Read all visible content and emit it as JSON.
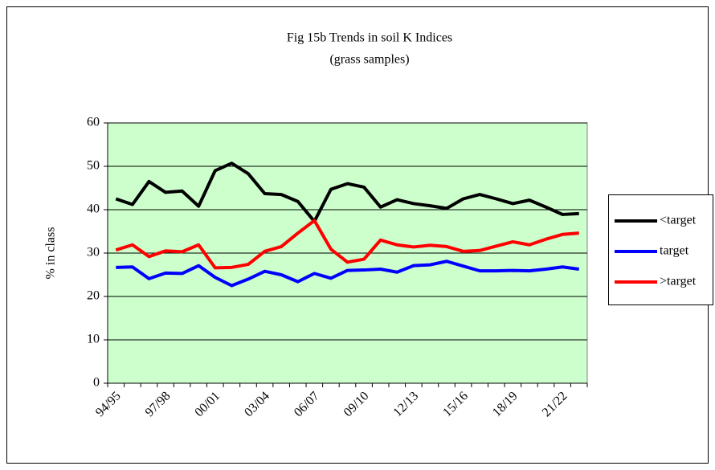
{
  "chart_data": {
    "type": "line",
    "title": "Fig 15b Trends in soil K Indices",
    "subtitle": "(grass samples)",
    "y_label": "% in class",
    "categories": [
      "94/95",
      null,
      null,
      "97/98",
      null,
      null,
      "00/01",
      null,
      null,
      "03/04",
      null,
      null,
      "06/07",
      null,
      null,
      "09/10",
      null,
      null,
      "12/13",
      null,
      null,
      "15/16",
      null,
      null,
      "18/19",
      null,
      null,
      "21/22",
      null
    ],
    "series": [
      {
        "name": "<target",
        "color": "#000000",
        "values": [
          42.5,
          41.2,
          46.5,
          44,
          44.3,
          40.8,
          49,
          50.7,
          48.3,
          43.7,
          43.5,
          41.9,
          37.3,
          44.7,
          46,
          45.2,
          40.6,
          42.3,
          41.4,
          40.9,
          40.3,
          42.5,
          43.5,
          42.5,
          41.4,
          42.2,
          40.6,
          38.9,
          39.1
        ]
      },
      {
        "name": "target",
        "color": "#0000ff",
        "values": [
          26.7,
          26.8,
          24.1,
          25.4,
          25.3,
          27.1,
          24.4,
          22.5,
          24,
          25.8,
          25,
          23.4,
          25.3,
          24.2,
          26,
          26.1,
          26.3,
          25.6,
          27.1,
          27.3,
          28.1,
          27,
          25.9,
          25.9,
          26,
          25.9,
          26.3,
          26.8,
          26.3
        ]
      },
      {
        "name": ">target",
        "color": "#ff0000",
        "values": [
          30.7,
          31.9,
          29.2,
          30.5,
          30.3,
          31.9,
          26.6,
          26.7,
          27.4,
          30.4,
          31.5,
          34.6,
          37.5,
          30.9,
          27.9,
          28.6,
          33,
          31.9,
          31.4,
          31.8,
          31.5,
          30.4,
          30.6,
          31.6,
          32.6,
          31.9,
          33.2,
          34.3,
          34.6
        ]
      }
    ],
    "ylim": [
      0,
      60
    ],
    "yticks": [
      0,
      10,
      20,
      30,
      40,
      50,
      60
    ],
    "grid": true,
    "legend": "right",
    "plot_background": "#ccffcc"
  }
}
